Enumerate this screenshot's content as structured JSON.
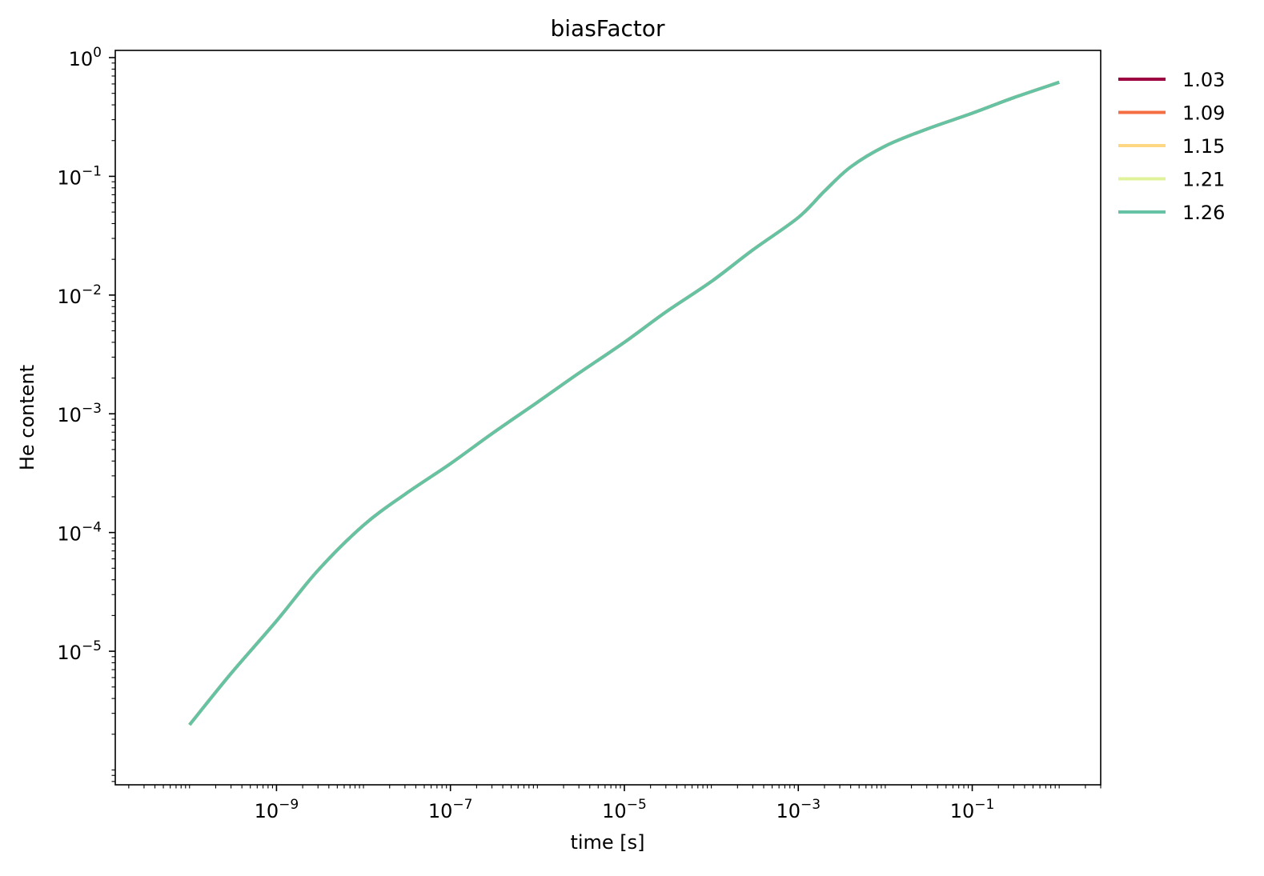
{
  "chart_data": {
    "type": "line",
    "title": "biasFactor",
    "xlabel": "time [s]",
    "ylabel": "He content",
    "xscale": "log",
    "yscale": "log",
    "xlim": [
      1.4e-11,
      3.0
    ],
    "ylim": [
      7.5e-07,
      1.15
    ],
    "grid": false,
    "legend": {
      "placement": "outside-top-right"
    },
    "x_ticks": [
      {
        "value": 1e-09,
        "label_base": "10",
        "label_exp": "−9"
      },
      {
        "value": 1e-07,
        "label_base": "10",
        "label_exp": "−7"
      },
      {
        "value": 1e-05,
        "label_base": "10",
        "label_exp": "−5"
      },
      {
        "value": 0.001,
        "label_base": "10",
        "label_exp": "−3"
      },
      {
        "value": 0.1,
        "label_base": "10",
        "label_exp": "−1"
      }
    ],
    "y_ticks": [
      {
        "value": 1e-05,
        "label_base": "10",
        "label_exp": "−5"
      },
      {
        "value": 0.0001,
        "label_base": "10",
        "label_exp": "−4"
      },
      {
        "value": 0.001,
        "label_base": "10",
        "label_exp": "−3"
      },
      {
        "value": 0.01,
        "label_base": "10",
        "label_exp": "−2"
      },
      {
        "value": 0.1,
        "label_base": "10",
        "label_exp": "−1"
      },
      {
        "value": 1,
        "label_base": "10",
        "label_exp": "0"
      }
    ],
    "x": [
      1e-10,
      3e-10,
      1e-09,
      3e-09,
      1e-08,
      3e-08,
      1e-07,
      3e-07,
      1e-06,
      3e-06,
      1e-05,
      3e-05,
      0.0001,
      0.0003,
      0.001,
      0.002,
      0.004,
      0.01,
      0.03,
      0.1,
      0.3,
      1
    ],
    "series": [
      {
        "name": "1.03",
        "color": "#9e0142",
        "values": [
          2.4e-06,
          6.5e-06,
          1.8e-05,
          4.8e-05,
          0.000115,
          0.00021,
          0.00038,
          0.00068,
          0.00125,
          0.0022,
          0.004,
          0.0072,
          0.013,
          0.024,
          0.045,
          0.075,
          0.12,
          0.18,
          0.25,
          0.34,
          0.46,
          0.62
        ]
      },
      {
        "name": "1.09",
        "color": "#f46d43",
        "values": [
          2.4e-06,
          6.5e-06,
          1.8e-05,
          4.8e-05,
          0.000115,
          0.00021,
          0.00038,
          0.00068,
          0.00125,
          0.0022,
          0.004,
          0.0072,
          0.013,
          0.024,
          0.045,
          0.075,
          0.12,
          0.18,
          0.25,
          0.34,
          0.46,
          0.62
        ]
      },
      {
        "name": "1.15",
        "color": "#fdd782",
        "values": [
          2.4e-06,
          6.5e-06,
          1.8e-05,
          4.8e-05,
          0.000115,
          0.00021,
          0.00038,
          0.00068,
          0.00125,
          0.0022,
          0.004,
          0.0072,
          0.013,
          0.024,
          0.045,
          0.075,
          0.12,
          0.18,
          0.25,
          0.34,
          0.46,
          0.62
        ]
      },
      {
        "name": "1.21",
        "color": "#e0f39a",
        "values": [
          2.4e-06,
          6.5e-06,
          1.8e-05,
          4.8e-05,
          0.000115,
          0.00021,
          0.00038,
          0.00068,
          0.00125,
          0.0022,
          0.004,
          0.0072,
          0.013,
          0.024,
          0.045,
          0.075,
          0.12,
          0.18,
          0.25,
          0.34,
          0.46,
          0.62
        ]
      },
      {
        "name": "1.26",
        "color": "#66c2a5",
        "values": [
          2.4e-06,
          6.5e-06,
          1.8e-05,
          4.8e-05,
          0.000115,
          0.00021,
          0.00038,
          0.00068,
          0.00125,
          0.0022,
          0.004,
          0.0072,
          0.013,
          0.024,
          0.045,
          0.075,
          0.12,
          0.18,
          0.25,
          0.34,
          0.46,
          0.62
        ]
      }
    ]
  }
}
